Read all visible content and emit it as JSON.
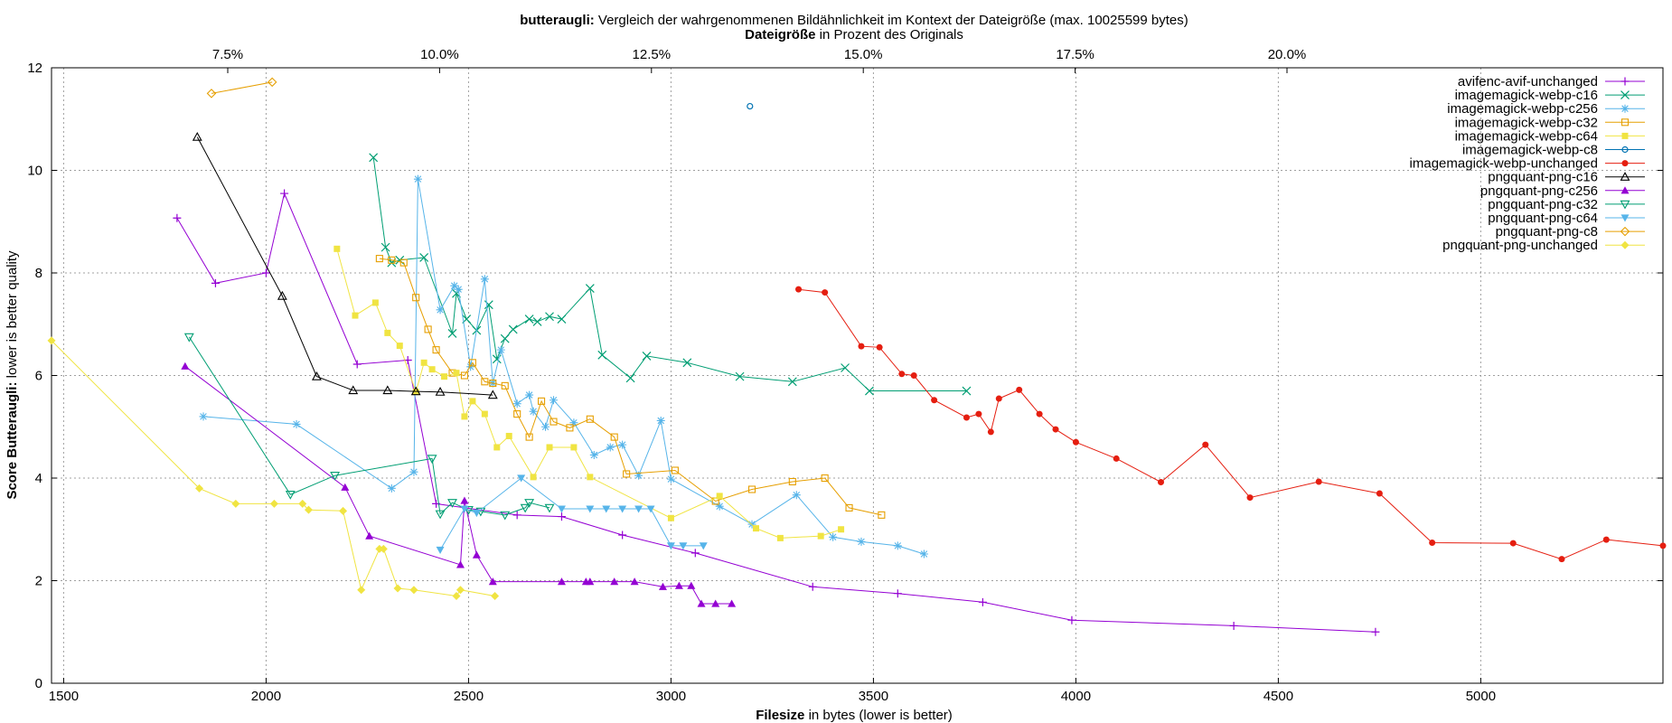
{
  "chart_data": {
    "type": "line",
    "title_bold": "butteraugli:",
    "title_rest": " Vergleich der wahrgenommenen Bildähnlichkeit im Kontext der Dateigröße (max. 10025599 bytes)",
    "x2label_bold": "Dateigröße",
    "x2label_rest": " in Prozent des Originals",
    "xlabel_bold": "Filesize",
    "xlabel_rest": " in bytes (lower is better)",
    "ylabel_bold": "Score Butteraugli:",
    "ylabel_rest": " lower is better quality",
    "xlim": [
      1470,
      5450
    ],
    "ylim": [
      0,
      12
    ],
    "x_ticks": [
      1500,
      2000,
      2500,
      3000,
      3500,
      4000,
      4500,
      5000
    ],
    "y_ticks": [
      0,
      2,
      4,
      6,
      8,
      10,
      12
    ],
    "x2_ticks": [
      {
        "label": "7.5%",
        "pct": 7.5
      },
      {
        "label": "10.0%",
        "pct": 10.0
      },
      {
        "label": "12.5%",
        "pct": 12.5
      },
      {
        "label": "15.0%",
        "pct": 15.0
      },
      {
        "label": "17.5%",
        "pct": 17.5
      },
      {
        "label": "20.0%",
        "pct": 20.0
      }
    ],
    "grid": true,
    "legend_position": "top-right",
    "series": [
      {
        "name": "avifenc-avif-unchanged",
        "color": "#9400d3",
        "marker": "plus",
        "x": [
          1780,
          1875,
          2000,
          2045,
          2225,
          2350,
          2420,
          2620,
          2730,
          2880,
          3060,
          3350,
          3560,
          3770,
          3990,
          4390,
          4740
        ],
        "y": [
          9.07,
          7.8,
          8.0,
          9.55,
          6.22,
          6.3,
          3.5,
          3.28,
          3.25,
          2.89,
          2.54,
          1.88,
          1.75,
          1.58,
          1.23,
          1.12,
          1.0
        ]
      },
      {
        "name": "imagemagick-webp-c16",
        "color": "#009e73",
        "marker": "cross",
        "x": [
          2265,
          2295,
          2310,
          2330,
          2390,
          2460,
          2470,
          2495,
          2520,
          2550,
          2570,
          2590,
          2610,
          2650,
          2670,
          2700,
          2730,
          2800,
          2830,
          2900,
          2940,
          3040,
          3170,
          3300,
          3430,
          3490,
          3730
        ],
        "y": [
          10.25,
          8.5,
          8.2,
          8.25,
          8.3,
          6.82,
          7.6,
          7.1,
          6.88,
          7.38,
          6.32,
          6.72,
          6.9,
          7.1,
          7.05,
          7.15,
          7.1,
          7.7,
          6.4,
          5.95,
          6.38,
          6.25,
          5.98,
          5.88,
          6.15,
          5.7,
          5.7
        ]
      },
      {
        "name": "imagemagick-webp-c256",
        "color": "#56b4e9",
        "marker": "star",
        "x": [
          1845,
          2075,
          2310,
          2365,
          2375,
          2430,
          2465,
          2475,
          2505,
          2540,
          2560,
          2580,
          2620,
          2650,
          2660,
          2690,
          2710,
          2760,
          2810,
          2850,
          2880,
          2920,
          2975,
          3000,
          3120,
          3200,
          3310,
          3400,
          3470,
          3560,
          3625
        ],
        "y": [
          5.2,
          5.05,
          3.8,
          4.12,
          9.83,
          7.28,
          7.75,
          7.68,
          6.17,
          7.88,
          5.85,
          6.5,
          5.45,
          5.62,
          5.3,
          5.0,
          5.52,
          5.08,
          4.45,
          4.6,
          4.65,
          4.05,
          5.12,
          3.98,
          3.45,
          3.1,
          3.67,
          2.85,
          2.76,
          2.68,
          2.52
        ]
      },
      {
        "name": "imagemagick-webp-c32",
        "color": "#e69f00",
        "marker": "square",
        "x": [
          2280,
          2310,
          2340,
          2370,
          2400,
          2420,
          2460,
          2490,
          2510,
          2540,
          2560,
          2590,
          2620,
          2650,
          2680,
          2710,
          2750,
          2800,
          2860,
          2890,
          3010,
          3110,
          3200,
          3300,
          3380,
          3440,
          3520
        ],
        "y": [
          8.28,
          8.25,
          8.2,
          7.52,
          6.9,
          6.5,
          6.05,
          6.0,
          6.25,
          5.88,
          5.85,
          5.8,
          5.25,
          4.8,
          5.5,
          5.1,
          4.98,
          5.15,
          4.8,
          4.08,
          4.15,
          3.55,
          3.78,
          3.93,
          4.0,
          3.42,
          3.28
        ]
      },
      {
        "name": "imagemagick-webp-c64",
        "color": "#f0e442",
        "marker": "fsquare",
        "x": [
          2175,
          2220,
          2270,
          2300,
          2330,
          2370,
          2390,
          2410,
          2440,
          2470,
          2490,
          2510,
          2540,
          2570,
          2600,
          2660,
          2700,
          2760,
          2800,
          3000,
          3120,
          3210,
          3270,
          3370,
          3420
        ],
        "y": [
          8.47,
          7.17,
          7.42,
          6.83,
          6.58,
          5.68,
          6.25,
          6.12,
          5.98,
          6.05,
          5.2,
          5.5,
          5.25,
          4.6,
          4.82,
          4.02,
          4.6,
          4.6,
          4.02,
          3.22,
          3.65,
          3.02,
          2.83,
          2.87,
          3.0
        ]
      },
      {
        "name": "imagemagick-webp-c8",
        "color": "#0072b2",
        "marker": "circle",
        "x": [
          3195
        ],
        "y": [
          11.25
        ]
      },
      {
        "name": "imagemagick-webp-unchanged",
        "color": "#e51e10",
        "marker": "fcircle",
        "x": [
          3315,
          3380,
          3470,
          3515,
          3570,
          3600,
          3650,
          3730,
          3760,
          3790,
          3810,
          3860,
          3910,
          3950,
          4000,
          4100,
          4210,
          4320,
          4430,
          4600,
          4750,
          4880,
          5080,
          5200,
          5310,
          5450
        ],
        "y": [
          7.68,
          7.62,
          6.57,
          6.55,
          6.03,
          6.0,
          5.52,
          5.18,
          5.25,
          4.9,
          5.55,
          5.72,
          5.25,
          4.95,
          4.7,
          4.38,
          3.92,
          4.65,
          3.62,
          3.93,
          3.7,
          2.74,
          2.73,
          2.42,
          2.8,
          2.68
        ]
      },
      {
        "name": "pngquant-png-c16",
        "color": "#000000",
        "marker": "triangle",
        "x": [
          1830,
          2040,
          2125,
          2215,
          2300,
          2370,
          2430,
          2560
        ],
        "y": [
          10.65,
          7.55,
          5.98,
          5.71,
          5.71,
          5.69,
          5.68,
          5.62
        ]
      },
      {
        "name": "pngquant-png-c256",
        "color": "#9400d3",
        "marker": "ftriangle",
        "x": [
          1800,
          2195,
          2255,
          2480,
          2490,
          2520,
          2560,
          2730,
          2790,
          2800,
          2860,
          2910,
          2980,
          3020,
          3050,
          3075,
          3110,
          3150
        ],
        "y": [
          6.18,
          3.82,
          2.87,
          2.31,
          3.56,
          2.5,
          1.98,
          1.98,
          1.98,
          1.98,
          1.98,
          1.98,
          1.88,
          1.9,
          1.9,
          1.55,
          1.55,
          1.55
        ]
      },
      {
        "name": "pngquant-png-c32",
        "color": "#009e73",
        "marker": "dtriangle",
        "x": [
          1810,
          2060,
          2170,
          2410,
          2430,
          2460,
          2500,
          2530,
          2590,
          2640,
          2650,
          2700
        ],
        "y": [
          6.75,
          3.68,
          4.05,
          4.38,
          3.3,
          3.52,
          3.38,
          3.35,
          3.28,
          3.42,
          3.52,
          3.42
        ]
      },
      {
        "name": "pngquant-png-c64",
        "color": "#56b4e9",
        "marker": "fdtriangle",
        "x": [
          2430,
          2490,
          2520,
          2630,
          2730,
          2800,
          2840,
          2880,
          2920,
          2950,
          3000,
          3030,
          3080
        ],
        "y": [
          2.6,
          3.4,
          3.32,
          4.0,
          3.4,
          3.4,
          3.4,
          3.4,
          3.4,
          3.4,
          2.68,
          2.68,
          2.68
        ]
      },
      {
        "name": "pngquant-png-c8",
        "color": "#e69f00",
        "marker": "diamond",
        "x": [
          1865,
          2015
        ],
        "y": [
          11.5,
          11.72
        ]
      },
      {
        "name": "pngquant-png-unchanged",
        "color": "#f0e442",
        "marker": "fdiamond",
        "x": [
          1470,
          1835,
          1925,
          2020,
          2090,
          2105,
          2190,
          2235,
          2280,
          2290,
          2325,
          2365,
          2470,
          2480,
          2565
        ],
        "y": [
          6.68,
          3.8,
          3.5,
          3.5,
          3.5,
          3.38,
          3.36,
          1.82,
          2.62,
          2.62,
          1.85,
          1.82,
          1.7,
          1.82,
          1.7
        ]
      }
    ]
  }
}
